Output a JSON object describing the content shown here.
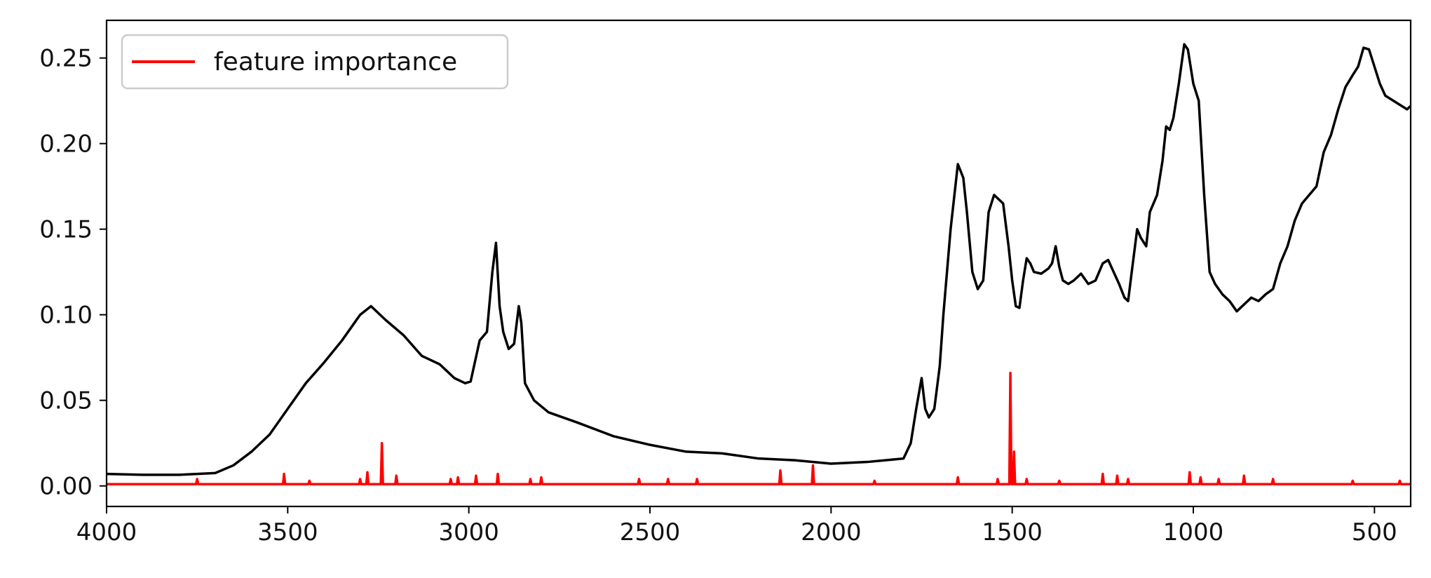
{
  "colors": {
    "spectrum": "#000000",
    "importance": "#ff0000",
    "axis": "#000000",
    "legend_border": "#cccccc"
  },
  "legend": {
    "label": "feature importance",
    "placement": "upper-left"
  },
  "chart_data": {
    "type": "line",
    "title": "",
    "xlabel": "",
    "ylabel": "",
    "x_inverted": true,
    "xlim": [
      4000,
      400
    ],
    "ylim": [
      -0.012,
      0.272
    ],
    "grid": false,
    "xticks": [
      4000,
      3500,
      3000,
      2500,
      2000,
      1500,
      1000,
      500
    ],
    "xtick_labels": [
      "4000",
      "3500",
      "3000",
      "2500",
      "2000",
      "1500",
      "1000",
      "500"
    ],
    "yticks": [
      0.0,
      0.05,
      0.1,
      0.15,
      0.2,
      0.25
    ],
    "ytick_labels": [
      "0.00",
      "0.05",
      "0.10",
      "0.15",
      "0.20",
      "0.25"
    ],
    "series": [
      {
        "color": "#000000",
        "x": [
          4000,
          3900,
          3800,
          3700,
          3650,
          3600,
          3550,
          3500,
          3450,
          3400,
          3350,
          3300,
          3270,
          3230,
          3180,
          3130,
          3080,
          3040,
          3010,
          2995,
          2970,
          2950,
          2935,
          2925,
          2915,
          2905,
          2890,
          2875,
          2862,
          2855,
          2845,
          2820,
          2780,
          2700,
          2600,
          2500,
          2400,
          2300,
          2200,
          2100,
          2000,
          1900,
          1800,
          1780,
          1765,
          1750,
          1740,
          1730,
          1715,
          1700,
          1690,
          1670,
          1650,
          1635,
          1625,
          1610,
          1595,
          1580,
          1565,
          1550,
          1540,
          1525,
          1510,
          1500,
          1490,
          1480,
          1470,
          1460,
          1450,
          1440,
          1420,
          1400,
          1390,
          1380,
          1370,
          1360,
          1345,
          1330,
          1310,
          1290,
          1270,
          1250,
          1235,
          1220,
          1205,
          1190,
          1180,
          1170,
          1155,
          1145,
          1130,
          1120,
          1100,
          1085,
          1075,
          1065,
          1055,
          1040,
          1025,
          1015,
          1000,
          985,
          970,
          955,
          940,
          920,
          900,
          880,
          860,
          840,
          820,
          800,
          780,
          760,
          740,
          720,
          700,
          680,
          660,
          640,
          620,
          600,
          580,
          560,
          545,
          530,
          515,
          500,
          485,
          470,
          455,
          440,
          425,
          410,
          400
        ],
        "y": [
          0.007,
          0.0065,
          0.0065,
          0.0075,
          0.012,
          0.02,
          0.03,
          0.045,
          0.06,
          0.072,
          0.085,
          0.1,
          0.105,
          0.097,
          0.088,
          0.076,
          0.071,
          0.063,
          0.06,
          0.061,
          0.085,
          0.09,
          0.125,
          0.142,
          0.105,
          0.09,
          0.08,
          0.083,
          0.105,
          0.095,
          0.06,
          0.05,
          0.043,
          0.037,
          0.029,
          0.024,
          0.02,
          0.019,
          0.016,
          0.015,
          0.013,
          0.014,
          0.016,
          0.025,
          0.045,
          0.063,
          0.045,
          0.04,
          0.045,
          0.07,
          0.1,
          0.15,
          0.188,
          0.18,
          0.16,
          0.125,
          0.115,
          0.12,
          0.16,
          0.17,
          0.168,
          0.165,
          0.14,
          0.12,
          0.105,
          0.104,
          0.12,
          0.133,
          0.13,
          0.125,
          0.124,
          0.127,
          0.13,
          0.14,
          0.128,
          0.12,
          0.118,
          0.12,
          0.124,
          0.118,
          0.12,
          0.13,
          0.132,
          0.125,
          0.118,
          0.11,
          0.108,
          0.125,
          0.15,
          0.145,
          0.14,
          0.16,
          0.17,
          0.19,
          0.21,
          0.208,
          0.215,
          0.235,
          0.258,
          0.255,
          0.235,
          0.225,
          0.17,
          0.125,
          0.118,
          0.112,
          0.108,
          0.102,
          0.106,
          0.11,
          0.108,
          0.112,
          0.115,
          0.13,
          0.14,
          0.155,
          0.165,
          0.17,
          0.175,
          0.195,
          0.205,
          0.22,
          0.233,
          0.24,
          0.245,
          0.256,
          0.255,
          0.245,
          0.235,
          0.228,
          0.226,
          0.224,
          0.222,
          0.22,
          0.222
        ]
      },
      {
        "name": "feature importance",
        "color": "#ff0000",
        "baseline": 0.001,
        "x_start": 4000,
        "x_end": 400,
        "spikes": [
          {
            "x": 3750,
            "y": 0.004
          },
          {
            "x": 3510,
            "y": 0.007
          },
          {
            "x": 3440,
            "y": 0.003
          },
          {
            "x": 3300,
            "y": 0.004
          },
          {
            "x": 3280,
            "y": 0.008
          },
          {
            "x": 3240,
            "y": 0.025
          },
          {
            "x": 3200,
            "y": 0.006
          },
          {
            "x": 3050,
            "y": 0.004
          },
          {
            "x": 3030,
            "y": 0.005
          },
          {
            "x": 2980,
            "y": 0.006
          },
          {
            "x": 2920,
            "y": 0.007
          },
          {
            "x": 2830,
            "y": 0.004
          },
          {
            "x": 2800,
            "y": 0.005
          },
          {
            "x": 2530,
            "y": 0.004
          },
          {
            "x": 2450,
            "y": 0.004
          },
          {
            "x": 2370,
            "y": 0.004
          },
          {
            "x": 2140,
            "y": 0.009
          },
          {
            "x": 2050,
            "y": 0.012
          },
          {
            "x": 1880,
            "y": 0.003
          },
          {
            "x": 1650,
            "y": 0.005
          },
          {
            "x": 1540,
            "y": 0.004
          },
          {
            "x": 1505,
            "y": 0.066
          },
          {
            "x": 1495,
            "y": 0.02
          },
          {
            "x": 1460,
            "y": 0.004
          },
          {
            "x": 1370,
            "y": 0.003
          },
          {
            "x": 1250,
            "y": 0.007
          },
          {
            "x": 1210,
            "y": 0.006
          },
          {
            "x": 1180,
            "y": 0.004
          },
          {
            "x": 1010,
            "y": 0.008
          },
          {
            "x": 980,
            "y": 0.005
          },
          {
            "x": 930,
            "y": 0.004
          },
          {
            "x": 860,
            "y": 0.006
          },
          {
            "x": 780,
            "y": 0.004
          },
          {
            "x": 560,
            "y": 0.003
          },
          {
            "x": 430,
            "y": 0.003
          }
        ]
      }
    ]
  }
}
